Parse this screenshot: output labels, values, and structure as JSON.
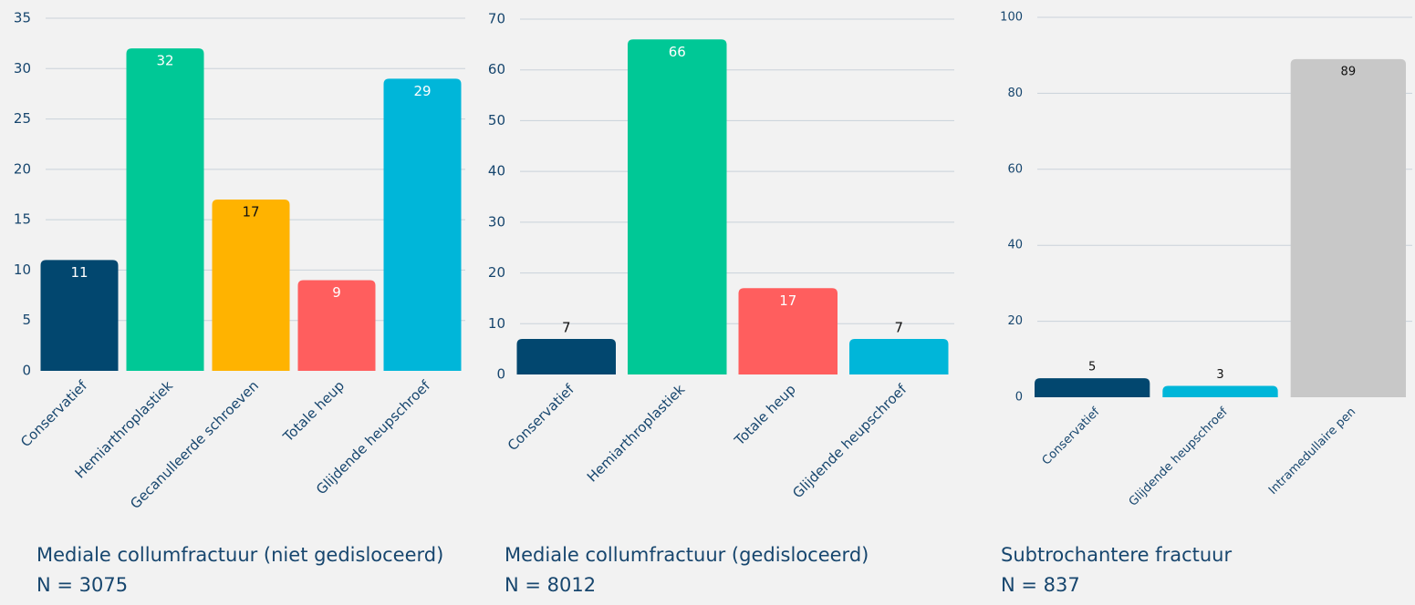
{
  "chart_data": [
    {
      "type": "bar",
      "title": "Mediale collumfractuur (niet gedisloceerd)",
      "subtitle": "N = 3075",
      "categories": [
        "Conservatief",
        "Hemiarthroplastiek",
        "Gecanulleerde schroeven",
        "Totale heup",
        "Glijdende heupschroef"
      ],
      "values": [
        11,
        32,
        17,
        9,
        29
      ],
      "colors": [
        "#02476f",
        "#00c896",
        "#ffb300",
        "#ff5e5e",
        "#00b6d9"
      ],
      "ylim": [
        0,
        35
      ],
      "yticks": [
        0,
        5,
        10,
        15,
        20,
        25,
        30,
        35
      ],
      "grid": true
    },
    {
      "type": "bar",
      "title": "Mediale collumfractuur (gedisloceerd)",
      "subtitle": "N = 8012",
      "categories": [
        "Conservatief",
        "Hemiarthroplastiek",
        "Totale heup",
        "Glijdende heupschroef"
      ],
      "values": [
        7,
        66,
        17,
        7
      ],
      "colors": [
        "#02476f",
        "#00c896",
        "#ff5e5e",
        "#00b6d9"
      ],
      "ylim": [
        0,
        70
      ],
      "yticks": [
        0,
        10,
        20,
        30,
        40,
        50,
        60,
        70
      ],
      "grid": true
    },
    {
      "type": "bar",
      "title": "Subtrochantere fractuur",
      "subtitle": "N = 837",
      "categories": [
        "Conservatief",
        "Glijdende heupschroef",
        "Intramedullaire pen"
      ],
      "values": [
        5,
        3,
        89
      ],
      "colors": [
        "#02476f",
        "#00b6d9",
        "#c8c8c8"
      ],
      "ylim": [
        0,
        100
      ],
      "yticks": [
        0,
        20,
        40,
        60,
        80,
        100
      ],
      "grid": true
    }
  ]
}
